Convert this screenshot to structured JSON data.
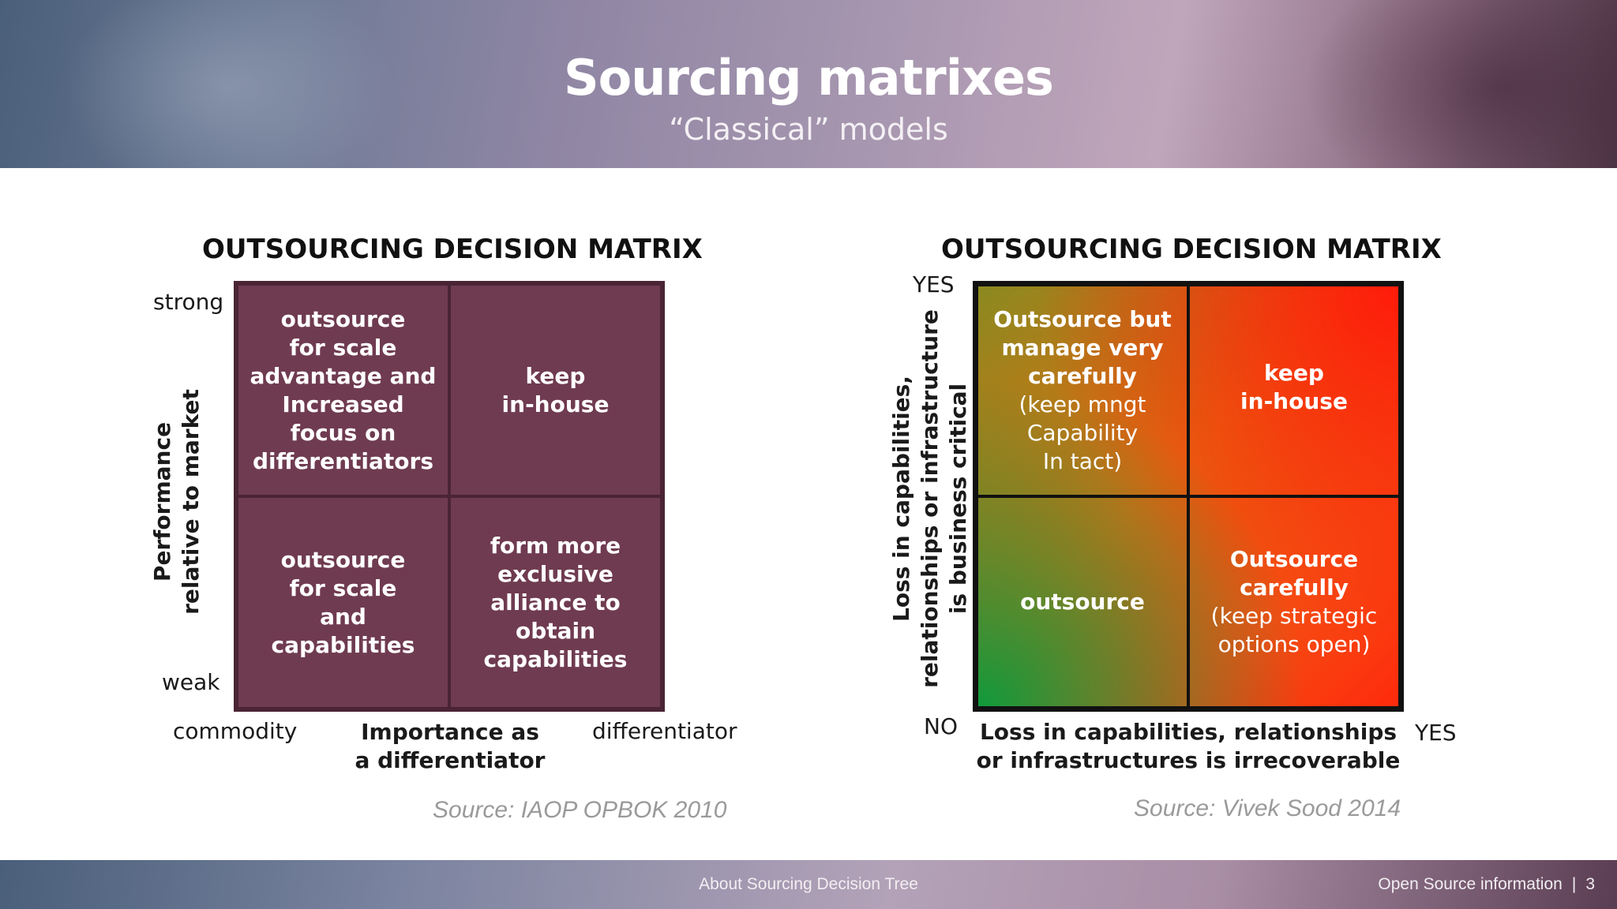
{
  "header": {
    "title": "Sourcing matrixes",
    "subtitle": "“Classical” models"
  },
  "left_matrix": {
    "title": "OUTSOURCING DECISION MATRIX",
    "y_axis": {
      "label_line1": "Performance",
      "label_line2": "relative to market",
      "top": "strong",
      "bottom": "weak"
    },
    "x_axis": {
      "label_line1": "Importance as",
      "label_line2": "a differentiator",
      "left": "commodity",
      "right": "differentiator"
    },
    "cells": {
      "top_left": [
        "outsource",
        "for scale",
        "advantage and",
        "Increased",
        "focus on",
        "differentiators"
      ],
      "top_right": [
        "keep",
        "in-house"
      ],
      "bottom_left": [
        "outsource",
        "for scale",
        "and",
        "capabilities"
      ],
      "bottom_right": [
        "form more",
        "exclusive",
        "alliance to",
        "obtain",
        "capabilities"
      ]
    },
    "source": "Source: IAOP OPBOK 2010"
  },
  "right_matrix": {
    "title": "OUTSOURCING DECISION MATRIX",
    "y_axis": {
      "label_line1": "Loss in capabilities,",
      "label_line2": "relationships or infrastructure",
      "label_line3": "is business critical",
      "top": "YES"
    },
    "x_axis": {
      "label_line1": "Loss in capabilities, relationships",
      "label_line2": "or infrastructures is irrecoverable",
      "origin": "NO",
      "right": "YES"
    },
    "cells": {
      "top_left": {
        "bold": [
          "Outsource but",
          "manage very",
          "carefully"
        ],
        "normal": [
          "(keep mngt",
          "Capability",
          "In tact)"
        ]
      },
      "top_right": {
        "bold": [
          "keep",
          "in-house"
        ]
      },
      "bottom_left": {
        "bold": [
          "outsource"
        ]
      },
      "bottom_right": {
        "bold": [
          "Outsource",
          "carefully"
        ],
        "normal": [
          "(keep strategic",
          "options open)"
        ]
      }
    },
    "colors": {
      "low": "#0f9a3c",
      "mid": "#e46a10",
      "high": "#ff1a0a"
    },
    "source": "Source: Vivek Sood 2014"
  },
  "footer": {
    "center": "About Sourcing Decision Tree",
    "right": "Open Source information",
    "page": "3"
  }
}
